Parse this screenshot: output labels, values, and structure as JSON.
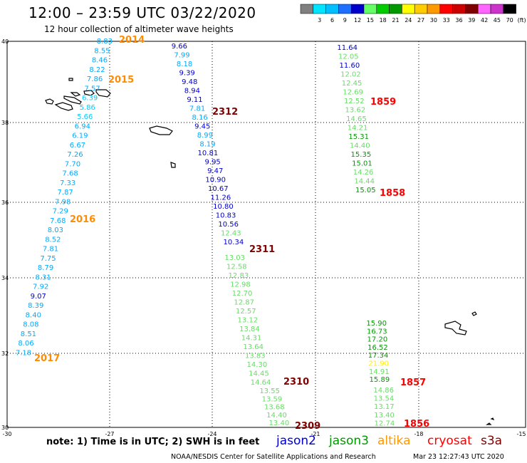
{
  "header": {
    "title": "12:00 – 23:59 UTC 03/22/2020",
    "subtitle": "12 hour collection of altimeter wave heights"
  },
  "scale": {
    "unit": "(ft)",
    "bins": [
      {
        "label": "",
        "color": "#808080"
      },
      {
        "label": "3",
        "color": "#00e5ff"
      },
      {
        "label": "6",
        "color": "#00bfff"
      },
      {
        "label": "9",
        "color": "#1e6fff"
      },
      {
        "label": "12",
        "color": "#0000cc"
      },
      {
        "label": "15",
        "color": "#66ff66"
      },
      {
        "label": "18",
        "color": "#00cc00"
      },
      {
        "label": "21",
        "color": "#009900"
      },
      {
        "label": "24",
        "color": "#ffff00"
      },
      {
        "label": "27",
        "color": "#ffcc00"
      },
      {
        "label": "30",
        "color": "#ff9900"
      },
      {
        "label": "33",
        "color": "#ff0000"
      },
      {
        "label": "36",
        "color": "#cc0000"
      },
      {
        "label": "39",
        "color": "#800000"
      },
      {
        "label": "42",
        "color": "#ff66ff"
      },
      {
        "label": "45",
        "color": "#cc33cc"
      },
      {
        "label": "70",
        "color": "#000000"
      }
    ]
  },
  "axes": {
    "x_ticks": [
      "-30",
      "-27",
      "-24",
      "-21",
      "-18",
      "-15"
    ],
    "y_ticks": [
      "40",
      "38",
      "36",
      "34",
      "32",
      "30"
    ]
  },
  "tracks": [
    {
      "label": "2014",
      "color": "#ff8c00",
      "values": [
        {
          "v": "8.83",
          "c": "#00aaff"
        },
        {
          "v": "8.55",
          "c": "#00aaff"
        },
        {
          "v": "8.46",
          "c": "#00aaff"
        },
        {
          "v": "8.22",
          "c": "#00aaff"
        },
        {
          "v": "7.86",
          "c": "#00aaff"
        },
        {
          "v": "7.57",
          "c": "#00aaff"
        },
        {
          "v": "6.39",
          "c": "#00ccff"
        },
        {
          "v": "5.86",
          "c": "#00ccff"
        },
        {
          "v": "5.66",
          "c": "#00ccff"
        },
        {
          "v": "6.94",
          "c": "#00aaff"
        },
        {
          "v": "6.19",
          "c": "#00aaff"
        },
        {
          "v": "6.67",
          "c": "#00aaff"
        },
        {
          "v": "7.26",
          "c": "#00aaff"
        },
        {
          "v": "7.70",
          "c": "#00aaff"
        },
        {
          "v": "7.68",
          "c": "#00aaff"
        },
        {
          "v": "7.33",
          "c": "#00aaff"
        },
        {
          "v": "7.87",
          "c": "#00aaff"
        },
        {
          "v": "7.98",
          "c": "#00aaff"
        },
        {
          "v": "7.29",
          "c": "#00aaff"
        },
        {
          "v": "7.68",
          "c": "#00aaff"
        },
        {
          "v": "8.03",
          "c": "#00aaff"
        },
        {
          "v": "8.52",
          "c": "#00aaff"
        },
        {
          "v": "7.81",
          "c": "#00aaff"
        },
        {
          "v": "7.75",
          "c": "#00aaff"
        },
        {
          "v": "8.79",
          "c": "#00aaff"
        },
        {
          "v": "8.31",
          "c": "#00aaff"
        },
        {
          "v": "7.92",
          "c": "#00aaff"
        },
        {
          "v": "9.07",
          "c": "#0000cc"
        },
        {
          "v": "8.39",
          "c": "#00aaff"
        },
        {
          "v": "8.40",
          "c": "#00aaff"
        },
        {
          "v": "8.08",
          "c": "#00aaff"
        },
        {
          "v": "8.51",
          "c": "#00aaff"
        },
        {
          "v": "8.06",
          "c": "#00aaff"
        },
        {
          "v": "7.18",
          "c": "#00aaff"
        }
      ]
    },
    {
      "label": "2015",
      "color": "#ff8c00",
      "values": []
    },
    {
      "label": "2016",
      "color": "#ff8c00",
      "values": []
    },
    {
      "label": "2017",
      "color": "#ff8c00",
      "values": []
    },
    {
      "label": "2312",
      "color": "#800000",
      "values": [
        {
          "v": "9.66",
          "c": "#0000cc"
        },
        {
          "v": "7.99",
          "c": "#00aaff"
        },
        {
          "v": "8.18",
          "c": "#00aaff"
        },
        {
          "v": "9.39",
          "c": "#0000cc"
        },
        {
          "v": "9.48",
          "c": "#0000cc"
        },
        {
          "v": "8.94",
          "c": "#0000cc"
        },
        {
          "v": "9.11",
          "c": "#0000cc"
        },
        {
          "v": "7.81",
          "c": "#00aaff"
        },
        {
          "v": "8.16",
          "c": "#00aaff"
        },
        {
          "v": "9.45",
          "c": "#0000cc"
        },
        {
          "v": "8.99",
          "c": "#00aaff"
        },
        {
          "v": "8.19",
          "c": "#00aaff"
        },
        {
          "v": "10.81",
          "c": "#0000cc"
        },
        {
          "v": "9.95",
          "c": "#0000cc"
        },
        {
          "v": "9.47",
          "c": "#0000cc"
        },
        {
          "v": "10.90",
          "c": "#0000cc"
        },
        {
          "v": "10.67",
          "c": "#0000cc"
        },
        {
          "v": "11.26",
          "c": "#0000cc"
        },
        {
          "v": "10.80",
          "c": "#0000cc"
        },
        {
          "v": "10.83",
          "c": "#0000cc"
        },
        {
          "v": "10.56",
          "c": "#0000cc"
        },
        {
          "v": "12.43",
          "c": "#66dd66"
        },
        {
          "v": "10.34",
          "c": "#0000cc"
        }
      ]
    },
    {
      "label": "2311",
      "color": "#800000",
      "values": [
        {
          "v": "13.03",
          "c": "#66dd66"
        },
        {
          "v": "12.58",
          "c": "#66dd66"
        },
        {
          "v": "12.83",
          "c": "#66dd66"
        },
        {
          "v": "12.98",
          "c": "#66dd66"
        },
        {
          "v": "12.70",
          "c": "#66dd66"
        },
        {
          "v": "12.87",
          "c": "#66dd66"
        },
        {
          "v": "12.57",
          "c": "#66dd66"
        },
        {
          "v": "13.12",
          "c": "#66dd66"
        },
        {
          "v": "13.84",
          "c": "#66dd66"
        },
        {
          "v": "14.31",
          "c": "#66dd66"
        },
        {
          "v": "13.64",
          "c": "#66dd66"
        },
        {
          "v": "13.83",
          "c": "#66dd66"
        },
        {
          "v": "14.30",
          "c": "#66dd66"
        },
        {
          "v": "14.45",
          "c": "#66dd66"
        },
        {
          "v": "14.64",
          "c": "#66dd66"
        }
      ]
    },
    {
      "label": "2310",
      "color": "#800000",
      "values": [
        {
          "v": "13.55",
          "c": "#66dd66"
        },
        {
          "v": "13.59",
          "c": "#66dd66"
        },
        {
          "v": "13.68",
          "c": "#66dd66"
        },
        {
          "v": "14.40",
          "c": "#66dd66"
        },
        {
          "v": "13.40",
          "c": "#66dd66"
        }
      ]
    },
    {
      "label": "2309",
      "color": "#800000",
      "values": []
    },
    {
      "label": "1859",
      "color": "#ff0000",
      "values": [
        {
          "v": "11.64",
          "c": "#0000cc"
        },
        {
          "v": "12.05",
          "c": "#66dd66"
        },
        {
          "v": "11.60",
          "c": "#0000cc"
        },
        {
          "v": "12.02",
          "c": "#66dd66"
        },
        {
          "v": "12.45",
          "c": "#66dd66"
        },
        {
          "v": "12.69",
          "c": "#66dd66"
        },
        {
          "v": "12.52",
          "c": "#66dd66"
        },
        {
          "v": "13.62",
          "c": "#66dd66"
        },
        {
          "v": "14.65",
          "c": "#66dd66"
        },
        {
          "v": "14.21",
          "c": "#66dd66"
        },
        {
          "v": "15.31",
          "c": "#009900"
        },
        {
          "v": "14.40",
          "c": "#66dd66"
        },
        {
          "v": "15.35",
          "c": "#009900"
        },
        {
          "v": "15.01",
          "c": "#009900"
        },
        {
          "v": "14.26",
          "c": "#66dd66"
        },
        {
          "v": "14.44",
          "c": "#66dd66"
        },
        {
          "v": "15.05",
          "c": "#009900"
        }
      ]
    },
    {
      "label": "1858",
      "color": "#ff0000",
      "values": []
    },
    {
      "label": "1857",
      "color": "#ff0000",
      "values": [
        {
          "v": "15.90",
          "c": "#009900"
        },
        {
          "v": "16.73",
          "c": "#009900"
        },
        {
          "v": "17.20",
          "c": "#009900"
        },
        {
          "v": "16.52",
          "c": "#009900"
        },
        {
          "v": "17.34",
          "c": "#009900"
        },
        {
          "v": "21.90",
          "c": "#ffee00"
        },
        {
          "v": "14.91",
          "c": "#66dd66"
        },
        {
          "v": "15.89",
          "c": "#009900"
        }
      ]
    },
    {
      "label": "1856",
      "color": "#ff0000",
      "values": [
        {
          "v": "14.86",
          "c": "#66dd66"
        },
        {
          "v": "13.54",
          "c": "#66dd66"
        },
        {
          "v": "13.17",
          "c": "#66dd66"
        },
        {
          "v": "13.40",
          "c": "#66dd66"
        },
        {
          "v": "12.74",
          "c": "#66dd66"
        }
      ]
    }
  ],
  "footer": {
    "note": "note:  1) Time is in UTC;  2) SWH is in feet",
    "satellites": [
      {
        "name": "jason2",
        "color": "#0000cc"
      },
      {
        "name": "jason3",
        "color": "#009900"
      },
      {
        "name": "altika",
        "color": "#ff9900"
      },
      {
        "name": "cryosat",
        "color": "#ff0000"
      },
      {
        "name": "s3a",
        "color": "#800000"
      }
    ],
    "credit": "NOAA/NESDIS Center for Satellite Applications and Research",
    "timestamp": "Mar 23 12:27:43 UTC 2020"
  }
}
